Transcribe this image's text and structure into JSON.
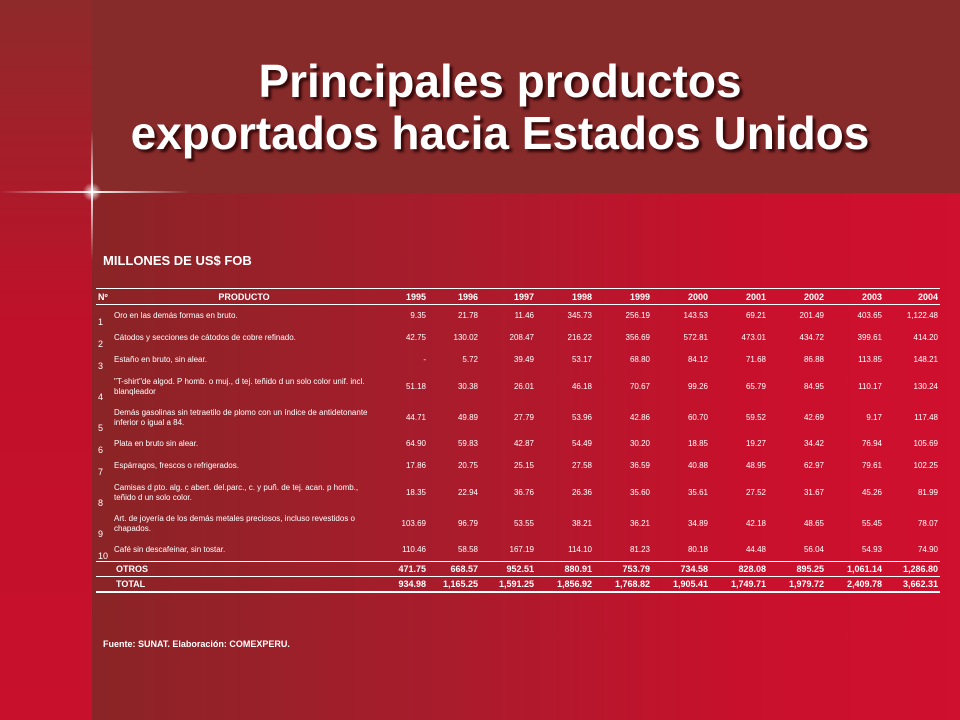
{
  "slide": {
    "title_line1": "Principales productos",
    "title_line2": "exportados hacia Estados Unidos",
    "subtitle": "MILLONES DE US$ FOB",
    "footer": "Fuente: SUNAT. Elaboración: COMEXPERU."
  },
  "table": {
    "headers": {
      "num": "Nº",
      "product": "PRODUCTO",
      "years": [
        "1995",
        "1996",
        "1997",
        "1998",
        "1999",
        "2000",
        "2001",
        "2002",
        "2003",
        "2004"
      ]
    },
    "rows": [
      {
        "n": "1",
        "product": "Oro en las demás formas en bruto.",
        "values": [
          "9.35",
          "21.78",
          "11.46",
          "345.73",
          "256.19",
          "143.53",
          "69.21",
          "201.49",
          "403.65",
          "1,122.48"
        ]
      },
      {
        "n": "2",
        "product": "Cátodos y secciones de cátodos de cobre refinado.",
        "values": [
          "42.75",
          "130.02",
          "208.47",
          "216.22",
          "356.69",
          "572.81",
          "473.01",
          "434.72",
          "399.61",
          "414.20"
        ]
      },
      {
        "n": "3",
        "product": "Estaño en bruto, sin alear.",
        "values": [
          "-",
          "5.72",
          "39.49",
          "53.17",
          "68.80",
          "84.12",
          "71.68",
          "86.88",
          "113.85",
          "148.21"
        ]
      },
      {
        "n": "4",
        "product": "\"T-shirt\"de algod. P homb. o muj., d tej. teñido d un solo color unif. incl. blanqleador",
        "values": [
          "51.18",
          "30.38",
          "26.01",
          "46.18",
          "70.67",
          "99.26",
          "65.79",
          "84.95",
          "110.17",
          "130.24"
        ]
      },
      {
        "n": "5",
        "product": "Demás gasolinas sin tetraetilo de plomo con un índice de antidetonante inferior o igual a 84.",
        "values": [
          "44.71",
          "49.89",
          "27.79",
          "53.96",
          "42.86",
          "60.70",
          "59.52",
          "42.69",
          "9.17",
          "117.48"
        ]
      },
      {
        "n": "6",
        "product": "Plata en bruto sin alear.",
        "values": [
          "64.90",
          "59.83",
          "42.87",
          "54.49",
          "30.20",
          "18.85",
          "19.27",
          "34.42",
          "76.94",
          "105.69"
        ]
      },
      {
        "n": "7",
        "product": "Espárragos, frescos o refrigerados.",
        "values": [
          "17.86",
          "20.75",
          "25.15",
          "27.58",
          "36.59",
          "40.88",
          "48.95",
          "62.97",
          "79.61",
          "102.25"
        ]
      },
      {
        "n": "8",
        "product": "Camisas d pto. alg. c abert. del.parc., c. y puñ. de tej. acan. p homb., teñido d un solo color.",
        "values": [
          "18.35",
          "22.94",
          "36.76",
          "26.36",
          "35.60",
          "35.61",
          "27.52",
          "31.67",
          "45.26",
          "81.99"
        ]
      },
      {
        "n": "9",
        "product": "Art. de joyería de los demás metales preciosos, incluso revestidos o chapados.",
        "values": [
          "103.69",
          "96.79",
          "53.55",
          "38.21",
          "36.21",
          "34.89",
          "42.18",
          "48.65",
          "55.45",
          "78.07"
        ]
      },
      {
        "n": "10",
        "product": "Café sin descafeinar, sin tostar.",
        "values": [
          "110.46",
          "58.58",
          "167.19",
          "114.10",
          "81.23",
          "80.18",
          "44.48",
          "56.04",
          "54.93",
          "74.90"
        ]
      }
    ],
    "totals": [
      {
        "label": "OTROS",
        "values": [
          "471.75",
          "668.57",
          "952.51",
          "880.91",
          "753.79",
          "734.58",
          "828.08",
          "895.25",
          "1,061.14",
          "1,286.80"
        ]
      },
      {
        "label": "TOTAL",
        "values": [
          "934.98",
          "1,165.25",
          "1,591.25",
          "1,856.92",
          "1,768.82",
          "1,905.41",
          "1,749.71",
          "1,979.72",
          "2,409.78",
          "3,662.31"
        ]
      }
    ]
  }
}
